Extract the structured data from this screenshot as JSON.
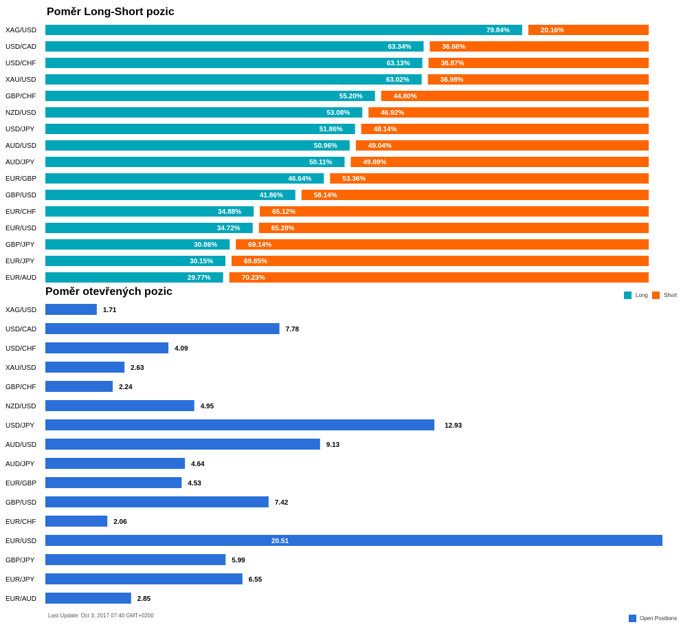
{
  "colors": {
    "long": "#00a5b8",
    "short": "#ff6600",
    "open": "#2b6fd9"
  },
  "chart_data": [
    {
      "type": "bar",
      "orientation": "horizontal",
      "stacked": true,
      "title": "Poměr Long-Short pozic",
      "categories": [
        "XAG/USD",
        "USD/CAD",
        "USD/CHF",
        "XAU/USD",
        "GBP/CHF",
        "NZD/USD",
        "USD/JPY",
        "AUD/USD",
        "AUD/JPY",
        "EUR/GBP",
        "GBP/USD",
        "EUR/CHF",
        "EUR/USD",
        "GBP/JPY",
        "EUR/JPY",
        "EUR/AUD"
      ],
      "series": [
        {
          "name": "Long",
          "values": [
            79.84,
            63.34,
            63.13,
            63.02,
            55.2,
            53.08,
            51.86,
            50.96,
            50.11,
            46.64,
            41.86,
            34.88,
            34.72,
            30.86,
            30.15,
            29.77
          ],
          "labels": [
            "79.84%",
            "63.34%",
            "63.13%",
            "63.02%",
            "55.20%",
            "53.08%",
            "51.86%",
            "50.96%",
            "50.11%",
            "46.64%",
            "41.86%",
            "34.88%",
            "34.72%",
            "30.86%",
            "30.15%",
            "29.77%"
          ]
        },
        {
          "name": "Short",
          "values": [
            20.16,
            36.66,
            36.87,
            36.98,
            44.8,
            46.92,
            48.14,
            49.04,
            49.89,
            53.36,
            58.14,
            65.12,
            65.28,
            69.14,
            69.85,
            70.23
          ],
          "labels": [
            "20.16%",
            "36.66%",
            "36.87%",
            "36.98%",
            "44.80%",
            "46.92%",
            "48.14%",
            "49.04%",
            "49.89%",
            "53.36%",
            "58.14%",
            "65.12%",
            "65.28%",
            "69.14%",
            "69.85%",
            "70.23%"
          ]
        }
      ],
      "xlim": [
        0,
        100
      ],
      "grid": false,
      "legend": "bottom-right"
    },
    {
      "type": "bar",
      "orientation": "horizontal",
      "title": "Poměr otevřených pozic",
      "categories": [
        "XAG/USD",
        "USD/CAD",
        "USD/CHF",
        "XAU/USD",
        "GBP/CHF",
        "NZD/USD",
        "USD/JPY",
        "AUD/USD",
        "AUD/JPY",
        "EUR/GBP",
        "GBP/USD",
        "EUR/CHF",
        "EUR/USD",
        "GBP/JPY",
        "EUR/JPY",
        "EUR/AUD"
      ],
      "series": [
        {
          "name": "Open Positions",
          "values": [
            1.71,
            7.78,
            4.09,
            2.63,
            2.24,
            4.95,
            12.93,
            9.13,
            4.64,
            4.53,
            7.42,
            2.06,
            20.51,
            5.99,
            6.55,
            2.85
          ],
          "labels": [
            "1.71",
            "7.78",
            "4.09",
            "2.63",
            "2.24",
            "4.95",
            "12.93",
            "9.13",
            "4.64",
            "4.53",
            "7.42",
            "2.06",
            "20.51",
            "5.99",
            "6.55",
            "2.85"
          ]
        }
      ],
      "xlim": [
        0,
        20.51
      ],
      "grid": false,
      "legend": "bottom-right"
    }
  ],
  "footer": {
    "last_update": "Last Update: Oct 3, 2017 07:40 GMT+0200"
  }
}
